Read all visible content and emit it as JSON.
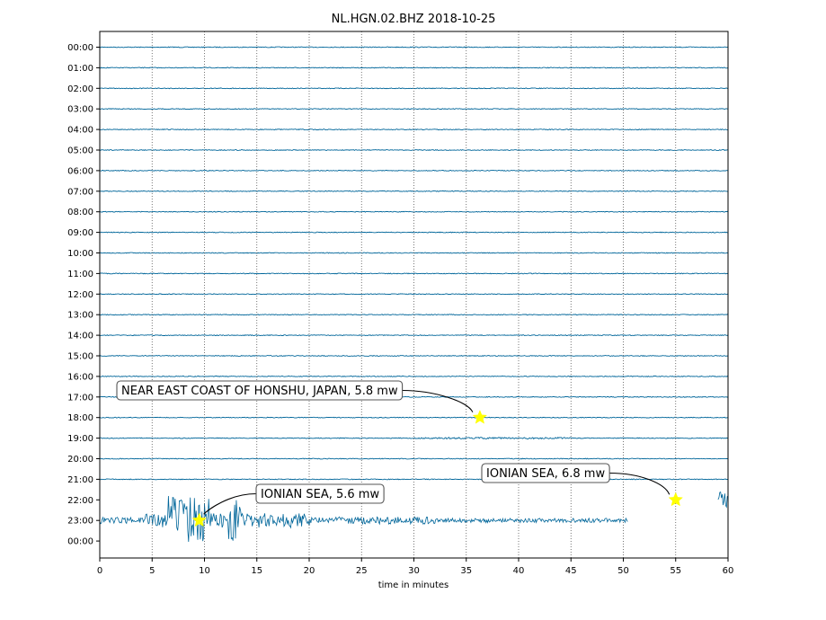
{
  "chart_data": {
    "type": "line",
    "title": "NL.HGN.02.BHZ 2018-10-25",
    "xlabel": "time in minutes",
    "ylabel": "",
    "xlim": [
      0,
      60
    ],
    "x_ticks": [
      0,
      5,
      10,
      15,
      20,
      25,
      30,
      35,
      40,
      45,
      50,
      55,
      60
    ],
    "y_tick_labels": [
      "00:00",
      "01:00",
      "02:00",
      "03:00",
      "04:00",
      "05:00",
      "06:00",
      "07:00",
      "08:00",
      "09:00",
      "10:00",
      "11:00",
      "12:00",
      "13:00",
      "14:00",
      "15:00",
      "16:00",
      "17:00",
      "18:00",
      "19:00",
      "20:00",
      "21:00",
      "22:00",
      "23:00",
      "00:00"
    ],
    "grid": "vertical dotted",
    "trace_color": "#00669a",
    "events": [
      {
        "label": "NEAR EAST COAST OF HONSHU, JAPAN, 5.8 mw",
        "hour": 18,
        "minute": 36.3
      },
      {
        "label": "IONIAN SEA, 6.8 mw",
        "hour": 22,
        "minute": 55.0
      },
      {
        "label": "IONIAN SEA, 5.6 mw",
        "hour": 23,
        "minute": 9.5
      }
    ],
    "marker_color": "#ffff00"
  }
}
